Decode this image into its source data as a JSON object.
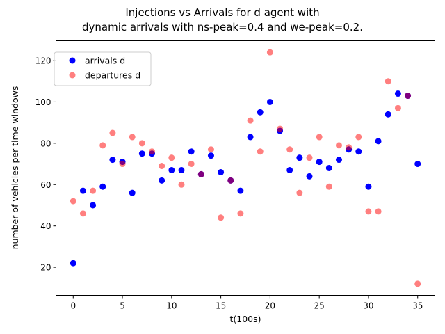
{
  "chart_data": {
    "type": "scatter",
    "title_lines": [
      "Injections vs Arrivals for d agent with",
      "dynamic arrivals with ns-peak=0.4 and we-peak=0.2."
    ],
    "xlabel": "t(100s)",
    "ylabel": "number of vehicles per time windows",
    "xlim": [
      -1.75,
      36.75
    ],
    "ylim": [
      6.4,
      129.6
    ],
    "xticks": [
      0,
      5,
      10,
      15,
      20,
      25,
      30,
      35
    ],
    "yticks": [
      20,
      40,
      60,
      80,
      100,
      120
    ],
    "grid": false,
    "legend_position": "upper left",
    "series": [
      {
        "name": "arrivals d",
        "color": "#0000ff",
        "alpha": 1.0,
        "x": [
          0,
          1,
          2,
          3,
          4,
          5,
          6,
          7,
          8,
          9,
          10,
          11,
          12,
          13,
          14,
          15,
          16,
          17,
          18,
          19,
          20,
          21,
          22,
          23,
          24,
          25,
          26,
          27,
          28,
          29,
          30,
          31,
          32,
          33,
          34,
          35
        ],
        "values": [
          22,
          57,
          50,
          59,
          72,
          71,
          56,
          75,
          75,
          62,
          67,
          67,
          76,
          65,
          74,
          66,
          62,
          57,
          83,
          95,
          100,
          86,
          67,
          73,
          64,
          71,
          68,
          72,
          77,
          76,
          59,
          81,
          94,
          104,
          103,
          70
        ]
      },
      {
        "name": "departures d",
        "color": "#ff0000",
        "alpha": 0.5,
        "x": [
          0,
          1,
          2,
          3,
          4,
          5,
          6,
          7,
          8,
          9,
          10,
          11,
          12,
          13,
          14,
          15,
          16,
          17,
          18,
          19,
          20,
          21,
          22,
          23,
          24,
          25,
          26,
          27,
          28,
          29,
          30,
          31,
          32,
          33,
          34,
          35
        ],
        "values": [
          52,
          46,
          57,
          79,
          85,
          70,
          83,
          80,
          76,
          69,
          73,
          60,
          70,
          65,
          77,
          44,
          62,
          46,
          91,
          76,
          124,
          87,
          77,
          56,
          73,
          83,
          59,
          79,
          78,
          83,
          47,
          47,
          110,
          97,
          103,
          12
        ]
      }
    ]
  }
}
